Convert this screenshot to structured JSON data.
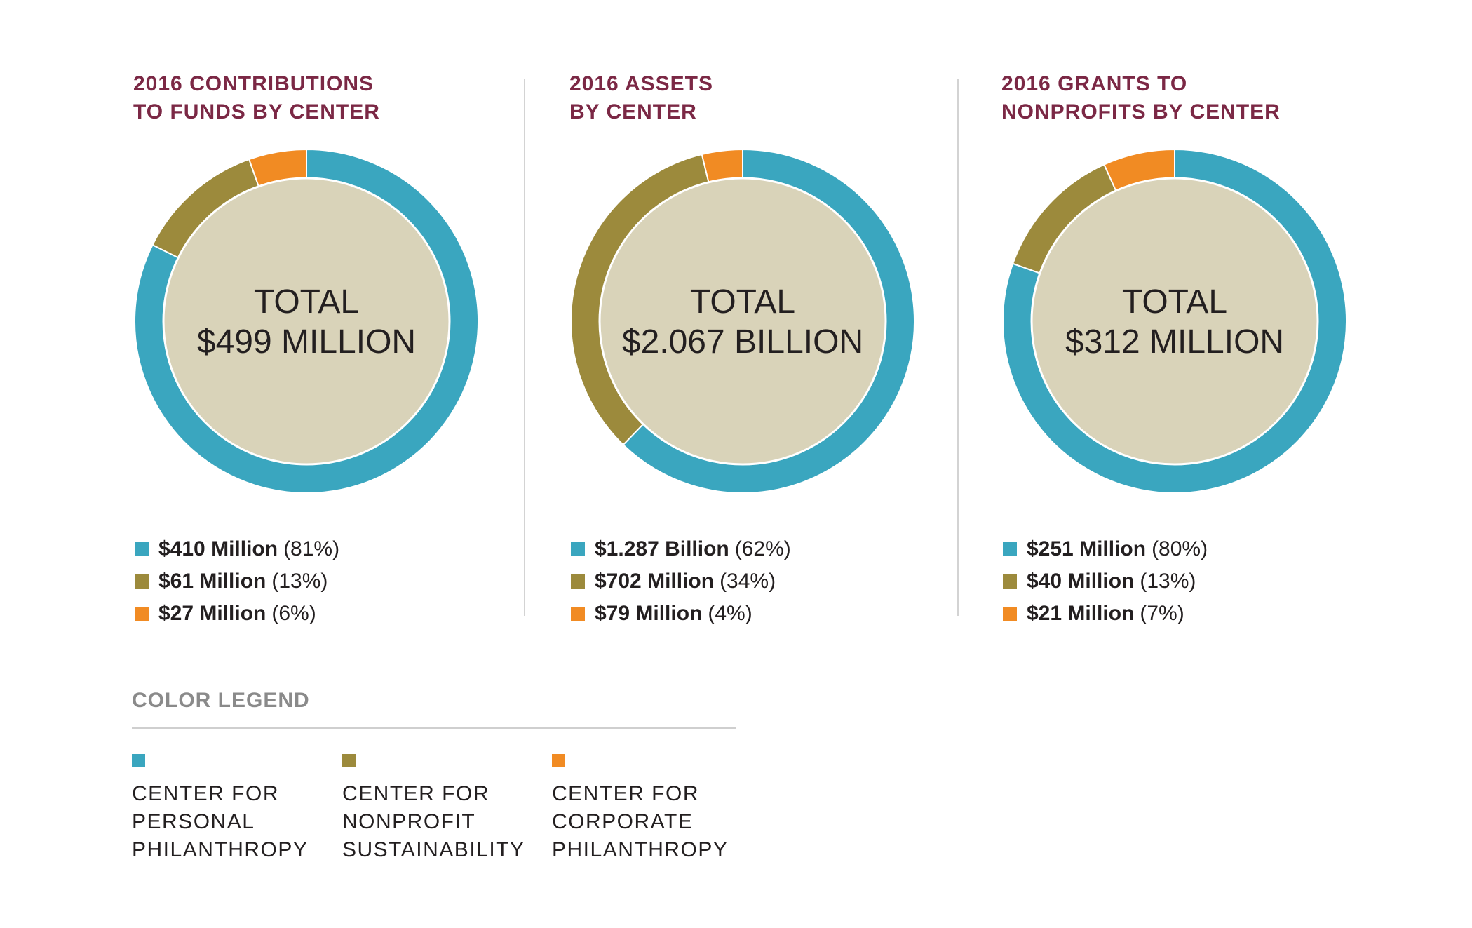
{
  "colors": {
    "personal": "#3aa6bf",
    "nonprofit": "#9c8a3c",
    "corporate": "#f18b23",
    "center_fill": "#d9d3b9",
    "title": "#7b2845"
  },
  "chart_data": [
    {
      "type": "pie",
      "title": "2016 CONTRIBUTIONS\nTO FUNDS BY CENTER",
      "center_line1": "TOTAL",
      "center_line2": "$499 MILLION",
      "series": [
        {
          "name": "Center for Personal Philanthropy",
          "value": 410,
          "amount": "$410 Million",
          "percent": "(81%)"
        },
        {
          "name": "Center for Nonprofit Sustainability",
          "value": 61,
          "amount": "$61 Million",
          "percent": "(13%)"
        },
        {
          "name": "Center for Corporate Philanthropy",
          "value": 27,
          "amount": "$27 Million",
          "percent": "(6%)"
        }
      ]
    },
    {
      "type": "pie",
      "title": "2016 ASSETS\nBY CENTER",
      "center_line1": "TOTAL",
      "center_line2": "$2.067 BILLION",
      "series": [
        {
          "name": "Center for Personal Philanthropy",
          "value": 1287,
          "amount": "$1.287 Billion",
          "percent": "(62%)"
        },
        {
          "name": "Center for Nonprofit Sustainability",
          "value": 702,
          "amount": "$702 Million",
          "percent": "(34%)"
        },
        {
          "name": "Center for Corporate Philanthropy",
          "value": 79,
          "amount": "$79 Million",
          "percent": "(4%)"
        }
      ]
    },
    {
      "type": "pie",
      "title": "2016 GRANTS TO\nNONPROFITS BY CENTER",
      "center_line1": "TOTAL",
      "center_line2": "$312 MILLION",
      "series": [
        {
          "name": "Center for Personal Philanthropy",
          "value": 251,
          "amount": "$251 Million",
          "percent": "(80%)"
        },
        {
          "name": "Center for Nonprofit Sustainability",
          "value": 40,
          "amount": "$40 Million",
          "percent": "(13%)"
        },
        {
          "name": "Center for Corporate Philanthropy",
          "value": 21,
          "amount": "$21 Million",
          "percent": "(7%)"
        }
      ]
    }
  ],
  "color_legend": {
    "title": "COLOR LEGEND",
    "items": [
      {
        "label": "CENTER FOR\nPERSONAL\nPHILANTHROPY",
        "color": "#3aa6bf"
      },
      {
        "label": "CENTER FOR\nNONPROFIT\nSUSTAINABILITY",
        "color": "#9c8a3c"
      },
      {
        "label": "CENTER FOR\nCORPORATE\nPHILANTHROPY",
        "color": "#f18b23"
      }
    ]
  }
}
